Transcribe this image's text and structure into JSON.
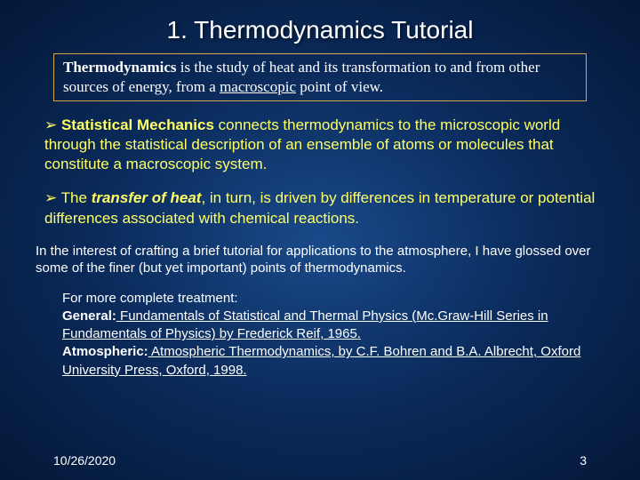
{
  "colors": {
    "background_center": "#1a4a8a",
    "background_mid": "#0a2a5a",
    "background_edge": "#041838",
    "title_color": "#ffffff",
    "box_border": "#d4a847",
    "box_text": "#ffffff",
    "bullet_text": "#ffff66",
    "note_text": "#ffffff",
    "refs_text": "#ffffff",
    "footer_text": "#ffffff"
  },
  "typography": {
    "title_fontsize": 28,
    "box_fontsize": 17,
    "bullet_fontsize": 17,
    "note_fontsize": 15,
    "refs_fontsize": 15,
    "footer_fontsize": 14,
    "title_family": "Arial",
    "box_family": "Times New Roman",
    "body_family": "Arial"
  },
  "title": "1. Thermodynamics Tutorial",
  "definition": {
    "bold_lead": "Thermodynamics",
    "rest_1": " is the study of heat and its transformation to and from other sources of energy, from a ",
    "underlined": "macroscopic",
    "rest_2": " point of view."
  },
  "bullet1": {
    "arrow": "➢ ",
    "bold_lead": "Statistical Mechanics",
    "rest": " connects thermodynamics to the microscopic world through the statistical description of an ensemble of atoms or molecules that constitute a macroscopic system."
  },
  "bullet2": {
    "arrow": "➢ ",
    "lead": "The ",
    "boldital": "transfer of heat",
    "rest": ", in turn, is driven by differences in temperature or potential differences associated with chemical reactions."
  },
  "note": "In the interest of crafting a brief tutorial for applications to the atmosphere, I have glossed over some of the finer (but yet important) points of thermodynamics.",
  "refs": {
    "line1": "For more complete treatment:",
    "gen_label": "General:",
    "gen_text": " Fundamentals of Statistical and Thermal Physics (Mc.Graw-Hill Series in Fundamentals of Physics) by Frederick Reif, 1965.",
    "atm_label": "Atmospheric:",
    "atm_text": " Atmospheric Thermodynamics, by C.F. Bohren and B.A. Albrecht, Oxford University Press, Oxford, 1998."
  },
  "footer": {
    "date": "10/26/2020",
    "page": "3"
  }
}
